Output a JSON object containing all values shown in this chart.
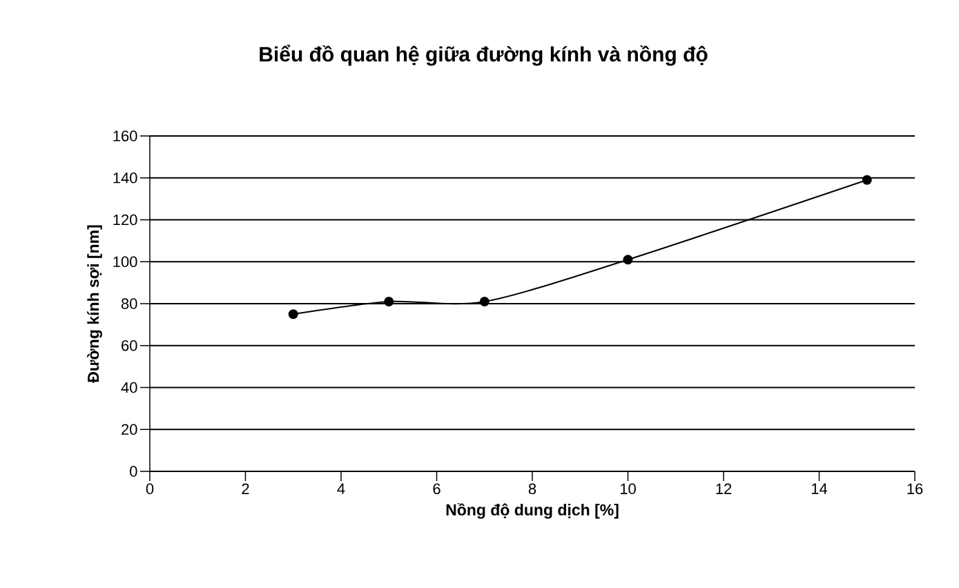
{
  "chart_data": {
    "type": "line",
    "title": "Biểu đồ quan hệ giữa đường kính và nồng độ",
    "xlabel": "Nồng độ dung dịch [%]",
    "ylabel": "Đường kính sợi [nm]",
    "x": [
      3,
      5,
      7,
      10,
      15
    ],
    "series": [
      {
        "color": "#000000",
        "values": [
          75,
          81,
          81,
          101,
          139
        ]
      }
    ],
    "xlim": [
      0,
      16
    ],
    "xticks": [
      0,
      2,
      4,
      6,
      8,
      10,
      12,
      14,
      16
    ],
    "ylim": [
      0,
      160
    ],
    "yticks": [
      0,
      20,
      40,
      60,
      80,
      100,
      120,
      140,
      160
    ],
    "grid": "y",
    "marker": "circle",
    "line_style": "solid"
  }
}
